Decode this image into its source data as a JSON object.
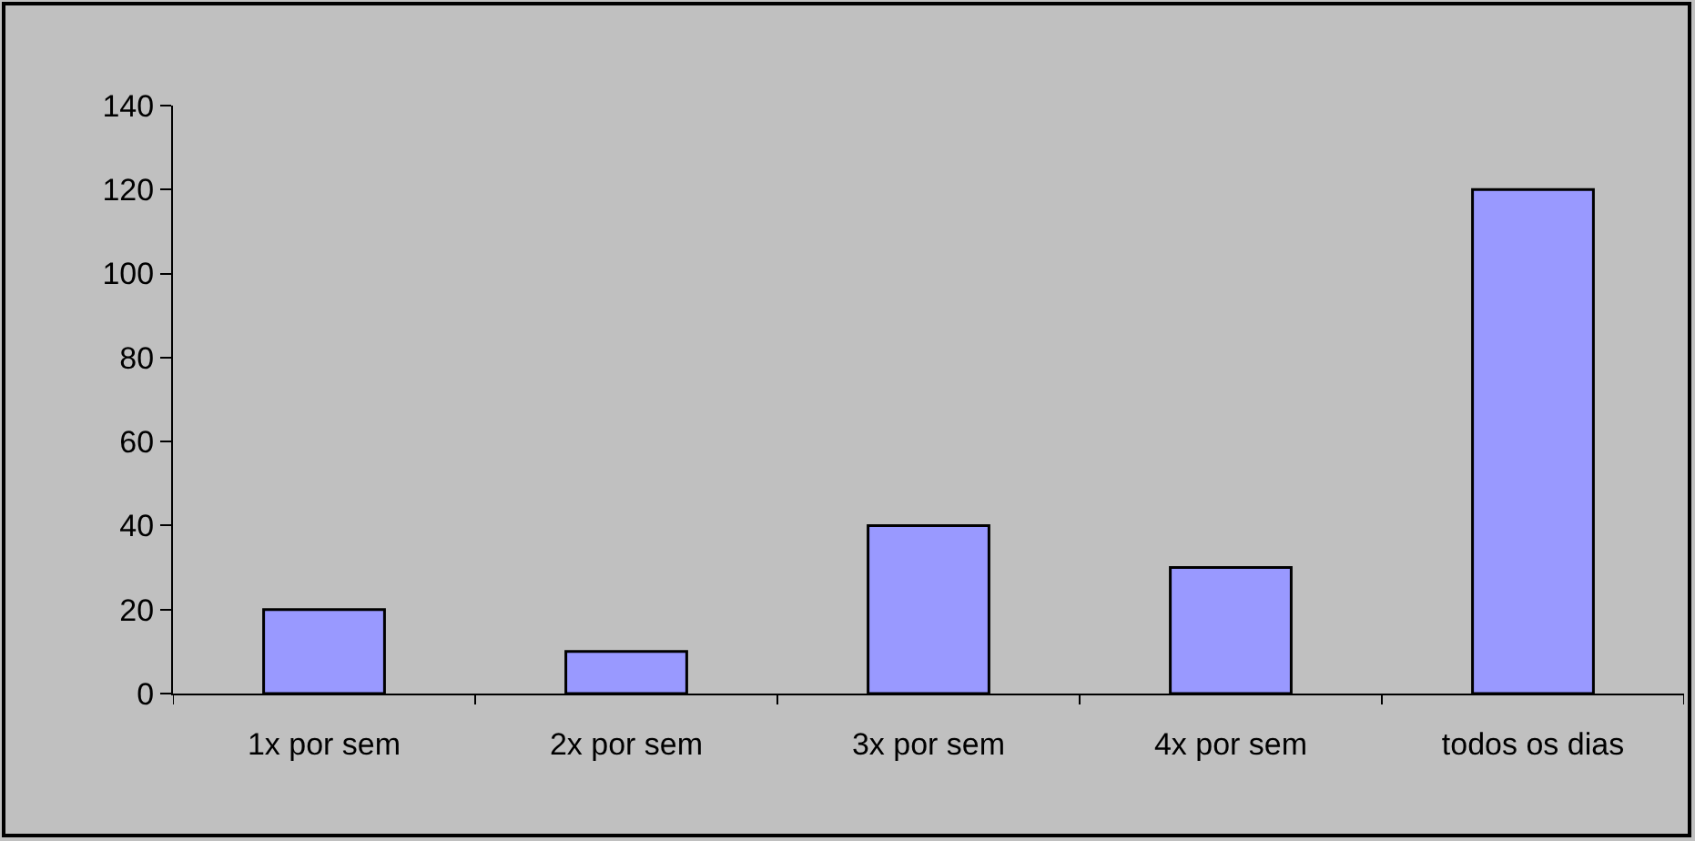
{
  "chart_data": {
    "type": "bar",
    "categories": [
      "1x por sem",
      "2x por sem",
      "3x por sem",
      "4x por sem",
      "todos os dias"
    ],
    "values": [
      20,
      10,
      40,
      30,
      120
    ],
    "color": "#9999ff",
    "ylim": [
      0,
      140
    ],
    "yticks": [
      0,
      20,
      40,
      60,
      80,
      100,
      120,
      140
    ],
    "grid": false,
    "legend": false
  }
}
